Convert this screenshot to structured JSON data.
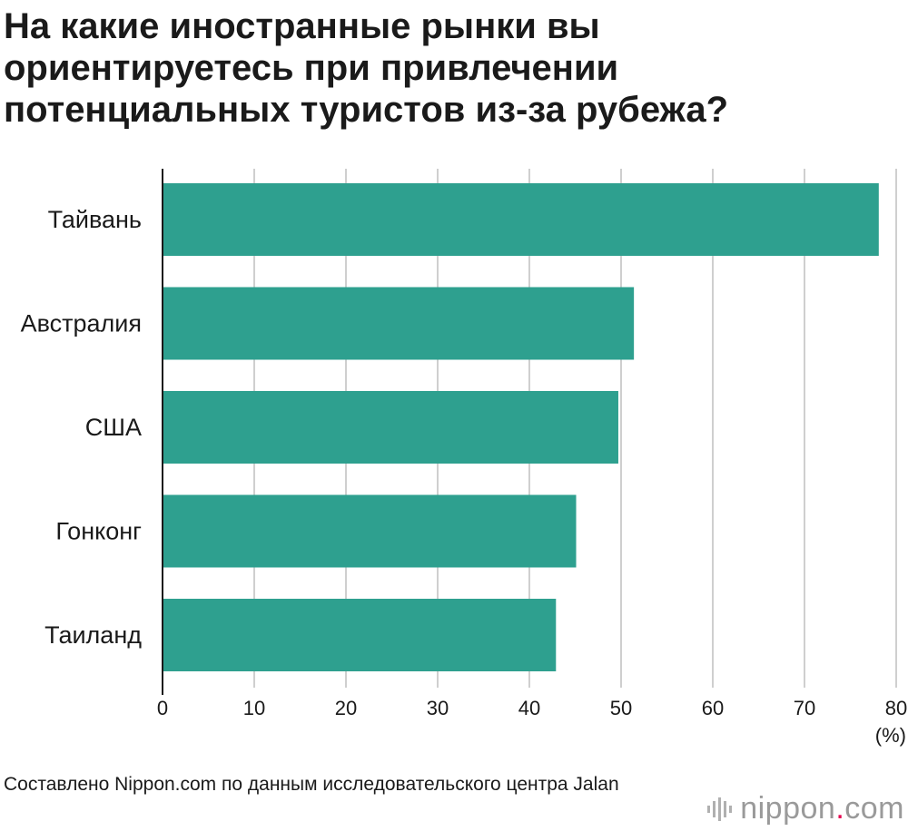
{
  "header": {
    "title": "На какие иностранные рынки вы ориентируетесь при привлечении потенциальных туристов из-за рубежа?"
  },
  "chart_data": {
    "type": "bar",
    "orientation": "horizontal",
    "categories": [
      "Тайвань",
      "Австралия",
      "США",
      "Гонконг",
      "Таиланд"
    ],
    "values": [
      78.1,
      51.4,
      49.7,
      45.1,
      42.9
    ],
    "xlim": [
      0,
      80
    ],
    "xticks": [
      "0",
      "10",
      "20",
      "30",
      "40",
      "50",
      "60",
      "70",
      "80"
    ],
    "unit": "(%)",
    "grid": true,
    "bar_color": "#2ea08f"
  },
  "footer": {
    "source": "Составлено Nippon.com по данным исследовательского центра Jalan",
    "brand_name": "nippon",
    "brand_dot": ".",
    "brand_suffix": "com",
    "brand_accent": "#e5004f"
  }
}
